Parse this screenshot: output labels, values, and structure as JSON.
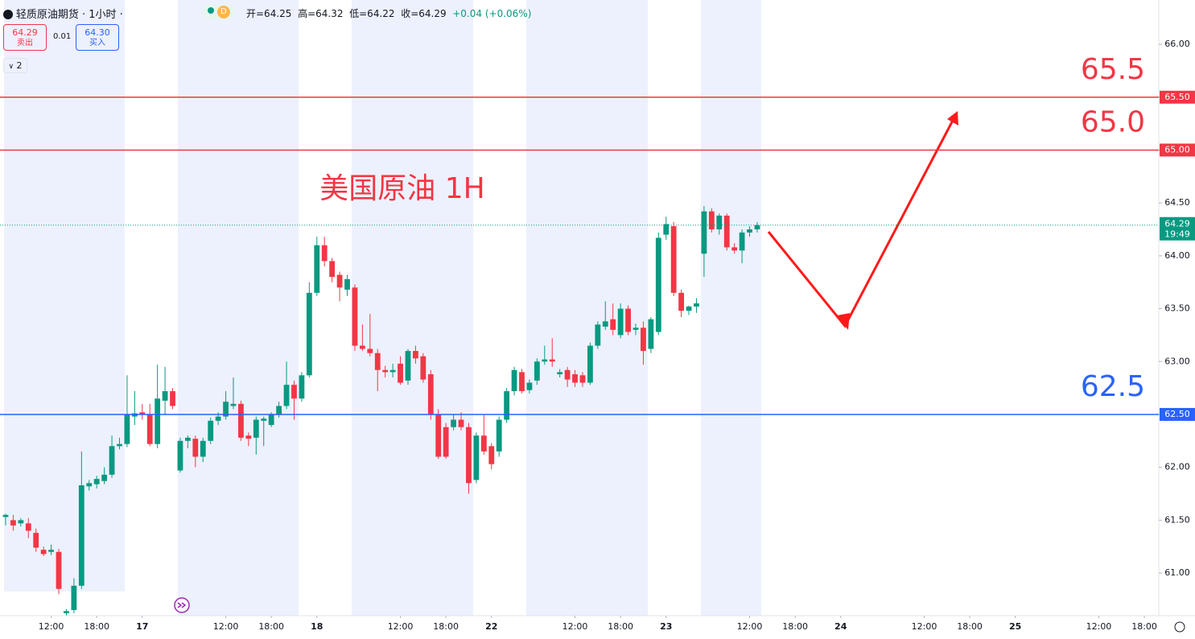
{
  "header": {
    "symbol": "轻质原油期货 · 1小时 ·",
    "badge": "D",
    "ohlc": [
      "开=64.25",
      "高=64.32",
      "低=64.22",
      "收=64.29",
      "+0.04 (+0.06%)"
    ],
    "sell_price": "64.29",
    "sell_label": "卖出",
    "spread": "0.01",
    "buy_price": "64.30",
    "buy_label": "买入",
    "indicator_count": "2"
  },
  "chart_data": {
    "type": "candlestick",
    "title": "美国原油 1H",
    "up_color": "#089981",
    "down_color": "#f23645",
    "candles": [
      [
        61.53,
        61.56,
        61.45,
        61.55
      ],
      [
        61.5,
        61.55,
        61.4,
        61.45
      ],
      [
        61.47,
        61.52,
        61.44,
        61.5
      ],
      [
        61.47,
        61.52,
        61.33,
        61.4
      ],
      [
        61.38,
        61.42,
        61.2,
        61.24
      ],
      [
        61.22,
        61.25,
        61.16,
        61.18
      ],
      [
        61.2,
        61.27,
        61.17,
        61.22
      ],
      [
        61.2,
        61.23,
        60.8,
        60.85
      ],
      [
        60.62,
        60.66,
        60.6,
        60.64
      ],
      [
        60.65,
        60.95,
        60.62,
        60.88
      ],
      [
        60.88,
        62.15,
        60.85,
        61.83
      ],
      [
        61.82,
        61.88,
        61.78,
        61.85
      ],
      [
        61.84,
        61.92,
        61.8,
        61.89
      ],
      [
        61.87,
        62.0,
        61.84,
        61.93
      ],
      [
        61.93,
        62.3,
        61.9,
        62.2
      ],
      [
        62.2,
        62.28,
        62.17,
        62.22
      ],
      [
        62.22,
        62.87,
        62.19,
        62.5
      ],
      [
        62.48,
        62.72,
        62.4,
        62.51
      ],
      [
        62.52,
        62.6,
        62.45,
        62.5
      ],
      [
        62.5,
        62.6,
        62.2,
        62.22
      ],
      [
        62.22,
        62.97,
        62.18,
        62.65
      ],
      [
        62.63,
        62.95,
        62.5,
        62.72
      ],
      [
        62.72,
        62.75,
        62.55,
        62.58
      ],
      [
        61.97,
        62.28,
        61.95,
        62.25
      ],
      [
        62.25,
        62.3,
        62.18,
        62.28
      ],
      [
        62.27,
        62.3,
        62.0,
        62.1
      ],
      [
        62.1,
        62.28,
        62.05,
        62.25
      ],
      [
        62.25,
        62.47,
        62.22,
        62.44
      ],
      [
        62.44,
        62.52,
        62.4,
        62.48
      ],
      [
        62.48,
        62.72,
        62.45,
        62.62
      ],
      [
        62.58,
        62.85,
        62.55,
        62.6
      ],
      [
        62.6,
        62.63,
        62.25,
        62.28
      ],
      [
        62.3,
        62.33,
        62.2,
        62.27
      ],
      [
        62.28,
        62.48,
        62.12,
        62.45
      ],
      [
        62.44,
        62.48,
        62.2,
        62.46
      ],
      [
        62.4,
        62.52,
        62.38,
        62.5
      ],
      [
        62.5,
        62.62,
        62.47,
        62.58
      ],
      [
        62.58,
        63.0,
        62.55,
        62.78
      ],
      [
        62.78,
        62.82,
        62.45,
        62.65
      ],
      [
        62.65,
        62.9,
        62.62,
        62.87
      ],
      [
        62.87,
        63.75,
        62.85,
        63.65
      ],
      [
        63.65,
        64.18,
        63.62,
        64.1
      ],
      [
        64.1,
        64.18,
        63.9,
        63.95
      ],
      [
        63.95,
        63.98,
        63.75,
        63.8
      ],
      [
        63.82,
        63.85,
        63.57,
        63.7
      ],
      [
        63.68,
        63.82,
        63.62,
        63.78
      ],
      [
        63.7,
        63.73,
        63.1,
        63.15
      ],
      [
        63.15,
        63.35,
        63.1,
        63.12
      ],
      [
        63.12,
        63.45,
        63.05,
        63.08
      ],
      [
        63.08,
        63.12,
        62.72,
        62.92
      ],
      [
        62.92,
        62.96,
        62.85,
        62.9
      ],
      [
        62.9,
        62.98,
        62.85,
        62.92
      ],
      [
        62.98,
        63.05,
        62.78,
        62.8
      ],
      [
        62.82,
        63.12,
        62.78,
        63.1
      ],
      [
        63.1,
        63.15,
        62.98,
        63.03
      ],
      [
        63.05,
        63.08,
        62.8,
        62.83
      ],
      [
        62.88,
        62.92,
        62.45,
        62.5
      ],
      [
        62.5,
        62.55,
        62.08,
        62.1
      ],
      [
        62.38,
        62.42,
        62.08,
        62.1
      ],
      [
        62.38,
        62.5,
        62.35,
        62.45
      ],
      [
        62.45,
        62.52,
        62.35,
        62.38
      ],
      [
        62.38,
        62.42,
        61.75,
        61.85
      ],
      [
        61.88,
        62.33,
        61.85,
        62.3
      ],
      [
        62.3,
        62.5,
        62.12,
        62.15
      ],
      [
        62.2,
        62.23,
        61.98,
        62.03
      ],
      [
        62.15,
        62.48,
        62.1,
        62.45
      ],
      [
        62.45,
        62.75,
        62.42,
        62.72
      ],
      [
        62.72,
        62.95,
        62.68,
        62.92
      ],
      [
        62.9,
        62.93,
        62.7,
        62.72
      ],
      [
        62.73,
        62.83,
        62.7,
        62.8
      ],
      [
        62.82,
        63.03,
        62.78,
        63.0
      ],
      [
        63.0,
        63.15,
        62.97,
        63.02
      ],
      [
        63.02,
        63.22,
        62.95,
        63.0
      ],
      [
        62.88,
        62.93,
        62.85,
        62.9
      ],
      [
        62.92,
        62.95,
        62.76,
        62.83
      ],
      [
        62.88,
        62.92,
        62.76,
        62.8
      ],
      [
        62.87,
        62.9,
        62.76,
        62.8
      ],
      [
        62.8,
        63.18,
        62.78,
        63.15
      ],
      [
        63.15,
        63.38,
        63.12,
        63.35
      ],
      [
        63.33,
        63.57,
        63.3,
        63.38
      ],
      [
        63.4,
        63.55,
        63.25,
        63.3
      ],
      [
        63.25,
        63.55,
        63.22,
        63.5
      ],
      [
        63.5,
        63.53,
        63.25,
        63.28
      ],
      [
        63.3,
        63.36,
        63.25,
        63.32
      ],
      [
        63.32,
        63.38,
        62.97,
        63.1
      ],
      [
        63.12,
        63.42,
        63.08,
        63.4
      ],
      [
        63.28,
        64.22,
        63.25,
        64.17
      ],
      [
        64.2,
        64.37,
        64.15,
        64.3
      ],
      [
        64.28,
        64.32,
        63.62,
        63.65
      ],
      [
        63.65,
        63.68,
        63.42,
        63.48
      ],
      [
        63.48,
        63.53,
        63.44,
        63.52
      ],
      [
        63.52,
        63.6,
        63.46,
        63.55
      ],
      [
        64.02,
        64.47,
        63.8,
        64.42
      ],
      [
        64.42,
        64.45,
        64.22,
        64.25
      ],
      [
        64.25,
        64.4,
        64.2,
        64.38
      ],
      [
        64.38,
        64.4,
        64.05,
        64.08
      ],
      [
        64.08,
        64.12,
        64.02,
        64.05
      ],
      [
        64.05,
        64.25,
        63.93,
        64.22
      ],
      [
        64.22,
        64.28,
        64.18,
        64.25
      ],
      [
        64.25,
        64.32,
        64.22,
        64.29
      ]
    ],
    "xlim": [
      -0.74,
      151.9
    ],
    "xticks": [
      {
        "value": 6,
        "label": "12:00"
      },
      {
        "value": 12,
        "label": "18:00"
      },
      {
        "value": 18,
        "label": "17"
      },
      {
        "value": 29,
        "label": "12:00"
      },
      {
        "value": 35,
        "label": "18:00"
      },
      {
        "value": 41,
        "label": "18"
      },
      {
        "value": 52,
        "label": "12:00"
      },
      {
        "value": 58,
        "label": "18:00"
      },
      {
        "value": 64,
        "label": "22"
      },
      {
        "value": 75,
        "label": "12:00"
      },
      {
        "value": 81,
        "label": "18:00"
      },
      {
        "value": 87,
        "label": "23"
      },
      {
        "value": 98,
        "label": "12:00"
      },
      {
        "value": 104,
        "label": "18:00"
      },
      {
        "value": 110,
        "label": "24"
      },
      {
        "value": 121,
        "label": "12:00"
      },
      {
        "value": 127,
        "label": "18:00"
      },
      {
        "value": 133,
        "label": "25"
      },
      {
        "value": 144,
        "label": "12:00"
      },
      {
        "value": 150,
        "label": "18:00"
      }
    ],
    "ylim": [
      60.597,
      66.419
    ],
    "yticks": [
      {
        "value": 61,
        "label": "61.00"
      },
      {
        "value": 61.5,
        "label": "61.50"
      },
      {
        "value": 62,
        "label": "62.00"
      },
      {
        "value": 62.5,
        "label": "62.50"
      },
      {
        "value": 63,
        "label": "63.00"
      },
      {
        "value": 63.5,
        "label": "63.50"
      },
      {
        "value": 64,
        "label": "64.00"
      },
      {
        "value": 64.5,
        "label": "64.50"
      },
      {
        "value": 65,
        "label": "65.00"
      },
      {
        "value": 65.5,
        "label": "65.50"
      },
      {
        "value": 66,
        "label": "66.00"
      }
    ],
    "levels": [
      {
        "value": 65.5,
        "label": "65.50",
        "annotation": "65.5",
        "color": "#f23645"
      },
      {
        "value": 65,
        "label": "65.00",
        "annotation": "65.0",
        "color": "#f23645"
      },
      {
        "value": 62.5,
        "label": "62.50",
        "annotation": "62.5",
        "color": "#2962ff"
      }
    ],
    "last_price": {
      "value": 64.29,
      "label": "64.29",
      "countdown": "19:49",
      "color": "#089981"
    }
  }
}
